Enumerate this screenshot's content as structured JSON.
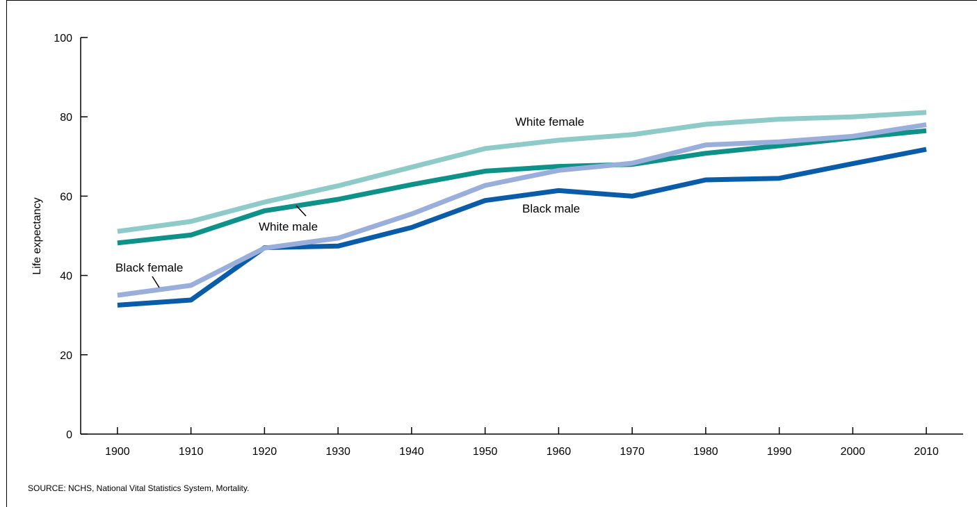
{
  "chart_data": {
    "type": "line",
    "title": "",
    "xlabel": "",
    "ylabel": "Life expectancy",
    "x": [
      1900,
      1910,
      1920,
      1930,
      1940,
      1950,
      1960,
      1970,
      1980,
      1990,
      2000,
      2010
    ],
    "xlim": [
      1895,
      2015
    ],
    "ylim": [
      0,
      100
    ],
    "yticks": [
      0,
      20,
      40,
      60,
      80,
      100
    ],
    "grid": false,
    "legend": "direct labels on lines",
    "series": [
      {
        "name": "White female",
        "color": "#8ecac8",
        "values": [
          51.1,
          53.6,
          58.5,
          62.6,
          67.3,
          72.0,
          74.1,
          75.5,
          78.1,
          79.4,
          80.0,
          81.1
        ]
      },
      {
        "name": "White male",
        "color": "#0e9189",
        "values": [
          48.2,
          50.2,
          56.3,
          59.2,
          62.9,
          66.3,
          67.5,
          68.0,
          70.8,
          72.7,
          74.7,
          76.5
        ]
      },
      {
        "name": "Black female",
        "color": "#9aaedc",
        "values": [
          35.0,
          37.5,
          46.9,
          49.4,
          55.5,
          62.7,
          66.5,
          68.3,
          72.9,
          73.7,
          75.1,
          78.0
        ]
      },
      {
        "name": "Black male",
        "color": "#0a5ca8",
        "values": [
          32.5,
          33.8,
          47.0,
          47.4,
          52.1,
          58.9,
          61.4,
          60.0,
          64.1,
          64.5,
          68.2,
          71.8
        ]
      }
    ]
  },
  "source_note": "SOURCE: NCHS, National Vital Statistics System, Mortality."
}
